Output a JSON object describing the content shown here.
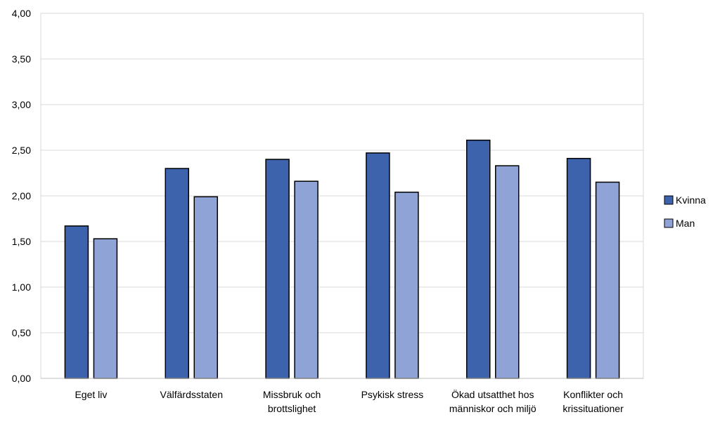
{
  "chart_data": {
    "type": "bar",
    "categories": [
      [
        "Eget liv"
      ],
      [
        "Välfärdsstaten"
      ],
      [
        "Missbruk och",
        "brottslighet"
      ],
      [
        "Psykisk stress"
      ],
      [
        "Ökad utsatthet hos",
        "människor och miljö"
      ],
      [
        "Konflikter och",
        "krissituationer"
      ]
    ],
    "series": [
      {
        "name": "Kvinna",
        "color": "#3d63ad",
        "values": [
          1.67,
          2.3,
          2.4,
          2.47,
          2.61,
          2.41
        ]
      },
      {
        "name": "Man",
        "color": "#8fa3d6",
        "values": [
          1.53,
          1.99,
          2.16,
          2.04,
          2.33,
          2.15
        ]
      }
    ],
    "ylim": [
      0,
      4
    ],
    "yticks": [
      "0,00",
      "0,50",
      "1,00",
      "1,50",
      "2,00",
      "2,50",
      "3,00",
      "3,50",
      "4,00"
    ],
    "grid": true,
    "legend_position": "right"
  }
}
